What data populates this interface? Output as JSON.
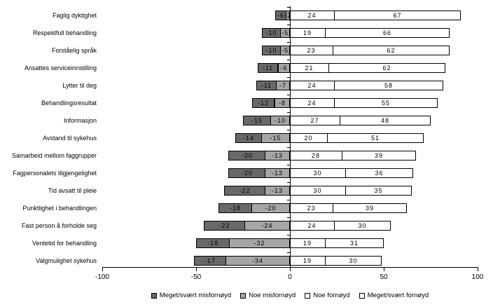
{
  "chart_data": {
    "type": "bar",
    "variant": "diverging-stacked-horizontal",
    "title": "",
    "categories": [
      "Faglig dyktighet",
      "Respektfull behandling",
      "Forståelig språk",
      "Ansattes serviceinnstilling",
      "Lytter til deg",
      "Behandlingsresultat",
      "Informasjon",
      "Avstand til sykehus",
      "Samarbeid mellom faggrupper",
      "Fagpersonalets tilgjengelighet",
      "Tid avsatt til pleie",
      "Punktlighet i behandlingen",
      "Fast person å forholde seg",
      "Ventetid for behandling",
      "Valgmulighet sykehus"
    ],
    "series": [
      {
        "name": "Meget/svært misfornøyd",
        "color": "#696969",
        "values": [
          -6,
          -10,
          -10,
          -11,
          -11,
          -12,
          -15,
          -14,
          -20,
          -20,
          -22,
          -18,
          -22,
          -18,
          -17
        ]
      },
      {
        "name": "Noe misfornøyd",
        "color": "#a6a6a6",
        "values": [
          -2,
          -5,
          -5,
          -6,
          -7,
          -8,
          -10,
          -15,
          -13,
          -13,
          -13,
          -20,
          -24,
          -32,
          -34
        ]
      },
      {
        "name": "Noe fornøyd",
        "color": "#ffffff",
        "values": [
          24,
          19,
          23,
          21,
          24,
          24,
          27,
          20,
          28,
          30,
          30,
          23,
          24,
          19,
          19
        ]
      },
      {
        "name": "Meget/svært fornøyd",
        "color": "#ffffff",
        "values": [
          67,
          66,
          62,
          62,
          58,
          55,
          48,
          51,
          39,
          36,
          35,
          39,
          30,
          31,
          30
        ]
      }
    ],
    "x_axis": {
      "min": -100,
      "max": 100,
      "ticks": [
        -100,
        -50,
        0,
        50,
        100
      ]
    },
    "grid": false,
    "legend_position": "bottom",
    "bar_border_color": "#000000",
    "background_color": "#ffffff"
  }
}
